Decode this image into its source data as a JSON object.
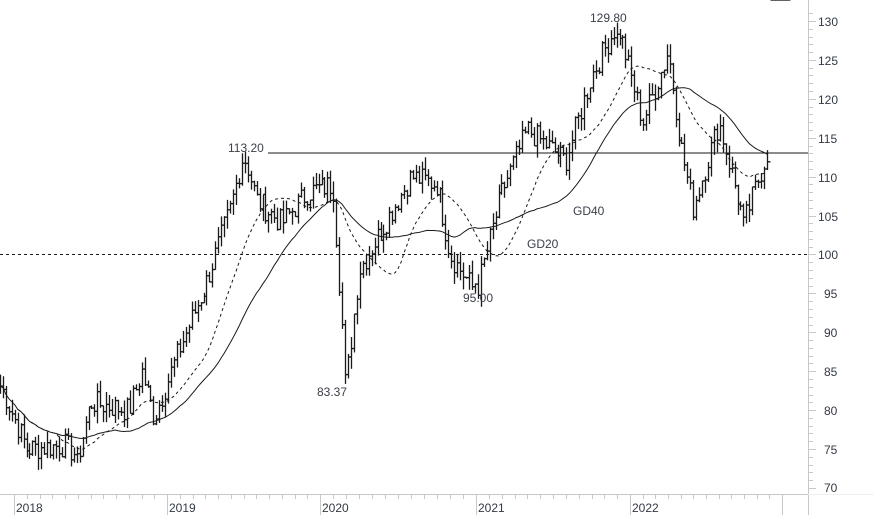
{
  "chart_data": {
    "type": "ohlc",
    "title": "",
    "xlabel": "",
    "ylabel": "",
    "ylim": [
      70,
      131
    ],
    "y_ticks": [
      70,
      75,
      80,
      85,
      90,
      95,
      100,
      105,
      110,
      115,
      120,
      125,
      130
    ],
    "x_ticks": [
      "2018",
      "2019",
      "2020",
      "2021",
      "2022"
    ],
    "grid": false,
    "legend": "none",
    "series": [
      {
        "name": "Price (weekly OHLC bars)",
        "style": "bar"
      },
      {
        "name": "GD20",
        "style": "dashed line",
        "label": "GD20"
      },
      {
        "name": "GD40",
        "style": "solid line",
        "label": "GD40"
      }
    ],
    "horizontal_lines": [
      {
        "value": 113.2,
        "style": "solid",
        "from": "2019-07"
      },
      {
        "value": 100,
        "style": "dotted"
      }
    ],
    "annotations": [
      {
        "text": "113.20",
        "value": 113.2,
        "date": "2019-07"
      },
      {
        "text": "83.37",
        "value": 83.37,
        "date": "2020-03"
      },
      {
        "text": "95.00",
        "value": 95.0,
        "date": "2021-01"
      },
      {
        "text": "129.80",
        "value": 129.8,
        "date": "2021-12"
      },
      {
        "text": "GD20",
        "date": "2021-02"
      },
      {
        "text": "GD40",
        "date": "2021-06"
      }
    ],
    "approx_path": [
      {
        "date": "2017-10",
        "close": 85.5
      },
      {
        "date": "2017-12",
        "close": 83
      },
      {
        "date": "2018-02",
        "close": 75
      },
      {
        "date": "2018-05",
        "close": 75.5
      },
      {
        "date": "2018-06",
        "close": 74
      },
      {
        "date": "2018-07",
        "close": 81
      },
      {
        "date": "2018-10",
        "close": 80
      },
      {
        "date": "2018-11",
        "close": 85
      },
      {
        "date": "2018-12",
        "close": 79
      },
      {
        "date": "2019-02",
        "close": 88
      },
      {
        "date": "2019-04",
        "close": 96
      },
      {
        "date": "2019-05",
        "close": 101
      },
      {
        "date": "2019-06",
        "close": 106
      },
      {
        "date": "2019-07",
        "close": 113.2
      },
      {
        "date": "2019-08",
        "close": 107
      },
      {
        "date": "2019-10",
        "close": 104
      },
      {
        "date": "2019-12",
        "close": 108
      },
      {
        "date": "2020-02",
        "close": 109
      },
      {
        "date": "2020-03",
        "close": 83.37
      },
      {
        "date": "2020-04",
        "close": 98
      },
      {
        "date": "2020-06",
        "close": 104
      },
      {
        "date": "2020-08",
        "close": 110
      },
      {
        "date": "2020-10",
        "close": 109
      },
      {
        "date": "2020-11",
        "close": 100
      },
      {
        "date": "2021-01",
        "close": 95
      },
      {
        "date": "2021-03",
        "close": 108
      },
      {
        "date": "2021-05",
        "close": 116
      },
      {
        "date": "2021-08",
        "close": 112
      },
      {
        "date": "2021-10",
        "close": 123
      },
      {
        "date": "2021-12",
        "close": 129.8
      },
      {
        "date": "2022-02",
        "close": 117
      },
      {
        "date": "2022-04",
        "close": 126
      },
      {
        "date": "2022-05",
        "close": 114
      },
      {
        "date": "2022-06",
        "close": 106
      },
      {
        "date": "2022-08",
        "close": 117
      },
      {
        "date": "2022-10",
        "close": 104
      },
      {
        "date": "2022-12",
        "close": 114
      },
      {
        "date": "2023-01",
        "close": 107
      },
      {
        "date": "2023-02",
        "close": 114
      }
    ]
  },
  "axis": {
    "y_labels": [
      "130",
      "125",
      "120",
      "115",
      "110",
      "105",
      "100",
      "95",
      "90",
      "85",
      "80",
      "75",
      "70"
    ],
    "x_labels": [
      "2018",
      "2019",
      "2020",
      "2021",
      "2022"
    ]
  },
  "annotations": {
    "high_2019": "113.20",
    "low_2020": "83.37",
    "low_2021": "95.00",
    "high_2021": "129.80",
    "gd20": "GD20",
    "gd40": "GD40"
  },
  "colors": {
    "bars": "#1a1a1a",
    "axis": "#c8c8c8",
    "text": "#333a44"
  }
}
